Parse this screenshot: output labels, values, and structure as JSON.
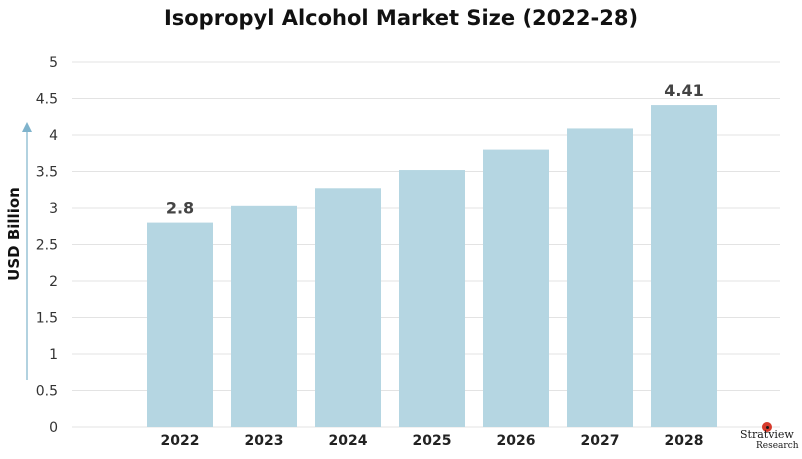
{
  "chart_data": {
    "type": "bar",
    "title": "Isopropyl Alcohol Market Size (2022-28)",
    "ylabel": "USD Billion",
    "xlabel": "",
    "categories": [
      "2022",
      "2023",
      "2024",
      "2025",
      "2026",
      "2027",
      "2028"
    ],
    "values": [
      2.8,
      3.03,
      3.27,
      3.52,
      3.8,
      4.09,
      4.41
    ],
    "data_labels": {
      "2022": "2.8",
      "2028": "4.41"
    },
    "ylim": [
      0,
      5
    ],
    "yticks": [
      "0",
      "0.5",
      "1",
      "1.5",
      "2",
      "2.5",
      "3",
      "3.5",
      "4",
      "4.5",
      "5"
    ],
    "grid": true,
    "colors": {
      "bar": "#b5d6e2",
      "grid": "#e3e3e3",
      "arrow": "#7fb3cc"
    }
  },
  "brand": {
    "name": "Stratview",
    "sub": "Research",
    "tm": "TM"
  }
}
